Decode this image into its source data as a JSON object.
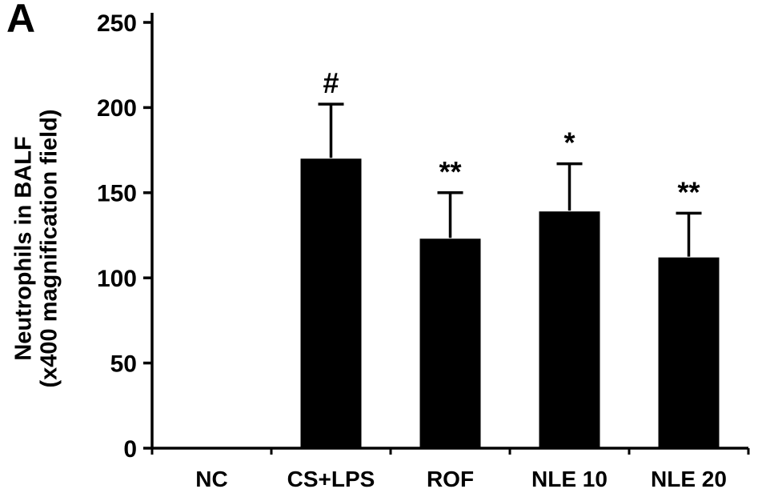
{
  "panel_label": "A",
  "chart_data": {
    "type": "bar",
    "title": "",
    "xlabel": "",
    "ylabel_line1": "Neutrophils in BALF",
    "ylabel_line2": "(x400 magnification field)",
    "categories": [
      "NC",
      "CS+LPS",
      "ROF",
      "NLE 10",
      "NLE 20"
    ],
    "values": [
      0,
      170,
      123,
      139,
      112
    ],
    "error_up": [
      0,
      32,
      27,
      28,
      26
    ],
    "annotations": [
      "",
      "#",
      "**",
      "*",
      "**"
    ],
    "ylim": [
      0,
      250
    ],
    "yticks": [
      0,
      50,
      100,
      150,
      200,
      250
    ],
    "bar_color": "#000000",
    "axis_color": "#000000",
    "grid": false,
    "legend": "none"
  }
}
